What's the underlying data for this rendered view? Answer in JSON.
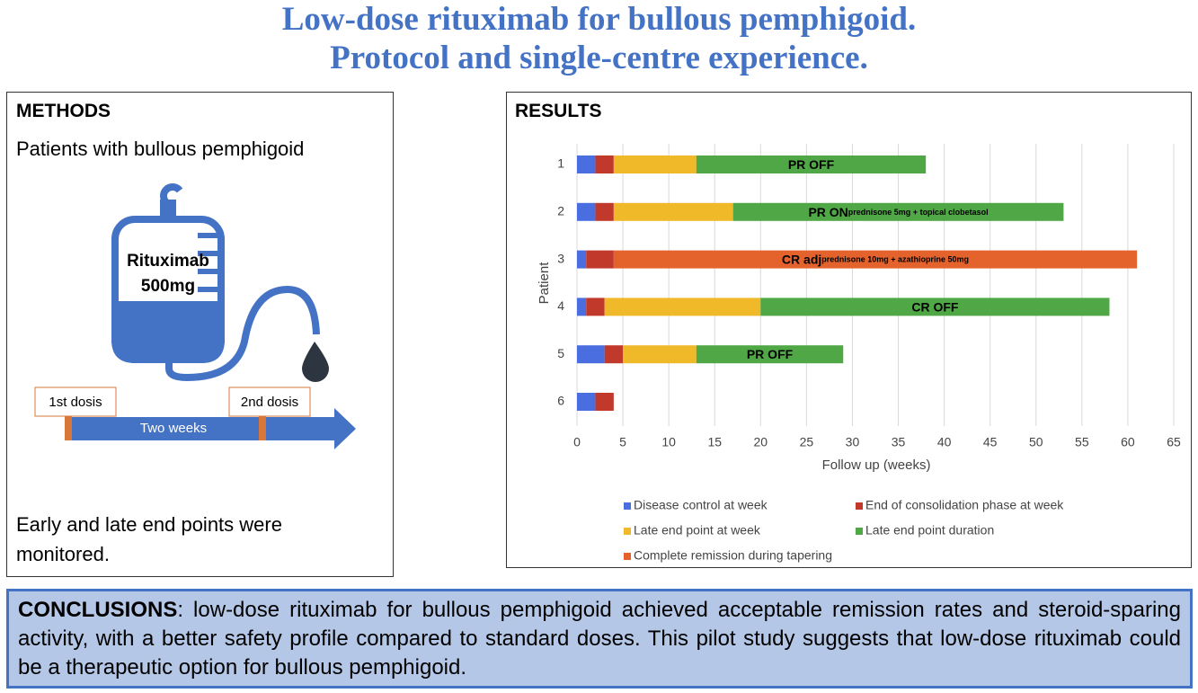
{
  "header": {
    "title_lines": [
      "Low-dose rituximab for bullous pemphigoid.",
      "Protocol and single-centre experience."
    ]
  },
  "methods": {
    "title": "METHODS",
    "intro": "Patients with bullous pemphigoid",
    "drug_lines": [
      "Rituximab",
      "500mg"
    ],
    "first_dose": "1st dosis",
    "second_dose": "2nd dosis",
    "interval": "Two weeks",
    "footer": "Early and late end points were monitored."
  },
  "results": {
    "title": "RESULTS"
  },
  "chart_data": {
    "type": "stacked-bar-horizontal",
    "y_label": "Patient",
    "x_label": "Follow up (weeks)",
    "categories": [
      "1",
      "2",
      "3",
      "4",
      "5",
      "6"
    ],
    "series": [
      {
        "name": "Disease control at week",
        "color": "#4a6ee0",
        "values": [
          2,
          2,
          1,
          1,
          3,
          2
        ]
      },
      {
        "name": "End of consolidation phase at week",
        "color": "#c0392b",
        "values": [
          2,
          2,
          3,
          2,
          2,
          2
        ]
      },
      {
        "name": "Late end point at week",
        "color": "#f0b92a",
        "values": [
          9,
          13,
          null,
          17,
          8,
          null
        ]
      },
      {
        "name": "Late end point duration",
        "color": "#4fa845",
        "values": [
          25,
          36,
          null,
          38,
          16,
          null
        ]
      },
      {
        "name": "Complete remission during tapering",
        "color": "#e4622b",
        "values": [
          null,
          null,
          57,
          null,
          null,
          null
        ]
      }
    ],
    "bar_labels": [
      {
        "label": "PR OFF"
      },
      {
        "label": "PR ON",
        "detail": "prednisone 5mg + topical clobetasol"
      },
      {
        "label": "CR adj",
        "detail": "prednisone 10mg + azathioprine 50mg"
      },
      {
        "label": "CR OFF"
      },
      {
        "label": "PR OFF"
      },
      null
    ],
    "xlim": [
      0,
      65
    ],
    "xticks": [
      0,
      5,
      10,
      15,
      20,
      25,
      30,
      35,
      40,
      45,
      50,
      55,
      60,
      65
    ],
    "grid": true
  },
  "conclusions": {
    "label": "CONCLUSIONS",
    "text": ": low-dose rituximab for bullous pemphigoid achieved acceptable remission rates and steroid-sparing activity, with a better safety profile compared to standard doses. This pilot study suggests that low-dose rituximab could be a therapeutic option for bullous pemphigoid."
  }
}
